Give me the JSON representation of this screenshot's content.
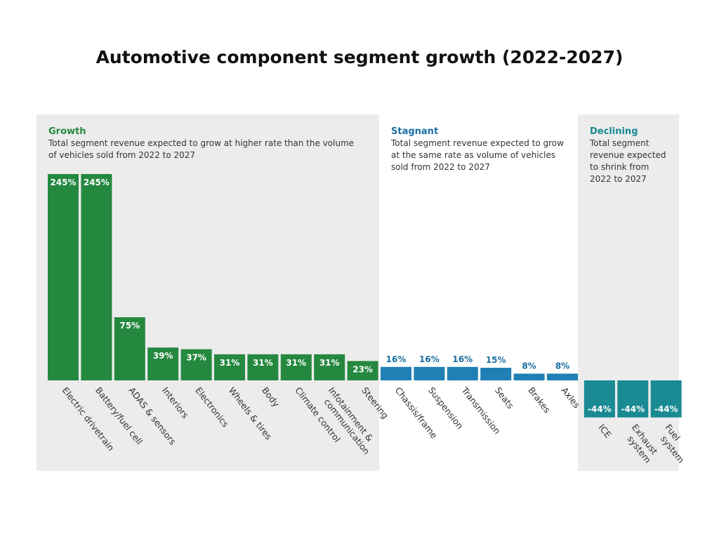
{
  "colors": {
    "growth": "#25883f",
    "stagnant": "#2080b5",
    "declining": "#1a8a93",
    "panel": "#ececec",
    "stagnant_label": "#1b6fa1"
  },
  "chart_data": {
    "type": "bar",
    "title": "Automotive component segment growth (2022-2027)",
    "value_suffix": "%",
    "groups": [
      {
        "key": "growth",
        "title": "Growth",
        "description": [
          "Total segment revenue expected to grow at higher rate than the volume",
          "of vehicles sold from 2022 to 2027"
        ],
        "shaded": true
      },
      {
        "key": "stagnant",
        "title": "Stagnant",
        "description": [
          "Total segment revenue expected to grow",
          "at the same rate as volume of vehicles",
          "sold from 2022 to 2027"
        ],
        "shaded": false
      },
      {
        "key": "declining",
        "title": "Declining",
        "description": [
          "Total segment",
          "revenue expected",
          "to shrink from",
          "2022 to 2027"
        ],
        "shaded": true
      }
    ],
    "bars": [
      {
        "category": [
          "Electric drivetrain"
        ],
        "value": 245,
        "group": "growth"
      },
      {
        "category": [
          "Battery/fuel cell"
        ],
        "value": 245,
        "group": "growth"
      },
      {
        "category": [
          "ADAS & sensors"
        ],
        "value": 75,
        "group": "growth"
      },
      {
        "category": [
          "Interiors"
        ],
        "value": 39,
        "group": "growth"
      },
      {
        "category": [
          "Electronics"
        ],
        "value": 37,
        "group": "growth"
      },
      {
        "category": [
          "Wheels & tires"
        ],
        "value": 31,
        "group": "growth"
      },
      {
        "category": [
          "Body"
        ],
        "value": 31,
        "group": "growth"
      },
      {
        "category": [
          "Climate control"
        ],
        "value": 31,
        "group": "growth"
      },
      {
        "category": [
          "Infotainment &",
          "communication"
        ],
        "value": 31,
        "group": "growth"
      },
      {
        "category": [
          "Steering"
        ],
        "value": 23,
        "group": "growth"
      },
      {
        "category": [
          "Chassis/frame"
        ],
        "value": 16,
        "group": "stagnant"
      },
      {
        "category": [
          "Suspension"
        ],
        "value": 16,
        "group": "stagnant"
      },
      {
        "category": [
          "Transmission"
        ],
        "value": 16,
        "group": "stagnant"
      },
      {
        "category": [
          "Seats"
        ],
        "value": 15,
        "group": "stagnant"
      },
      {
        "category": [
          "Brakes"
        ],
        "value": 8,
        "group": "stagnant"
      },
      {
        "category": [
          "Axles"
        ],
        "value": 8,
        "group": "stagnant"
      },
      {
        "category": [
          "ICE"
        ],
        "value": -44,
        "group": "declining"
      },
      {
        "category": [
          "Exhaust",
          "system"
        ],
        "value": -44,
        "group": "declining"
      },
      {
        "category": [
          "Fuel",
          "system"
        ],
        "value": -44,
        "group": "declining"
      }
    ]
  }
}
